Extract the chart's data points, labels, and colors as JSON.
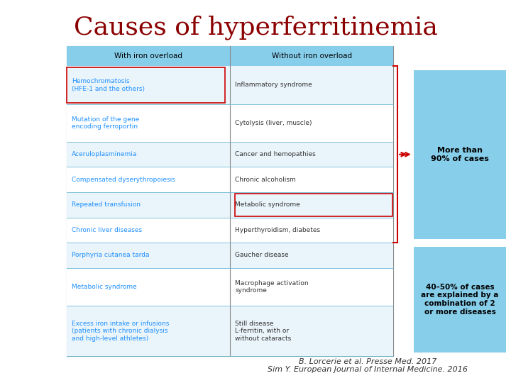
{
  "title": "Causes of hyperferritinemia",
  "title_color": "#8B0000",
  "title_fontsize": 26,
  "bg_color": "#FFFFFF",
  "table_bg": "#FFFFFF",
  "header_bg": "#87CEEB",
  "header_text_color": "#000000",
  "cell_text_color": "#1E90FF",
  "right_cell_text_color": "#333333",
  "header_left": "With iron overload",
  "header_right": "Without iron overload",
  "rows": [
    [
      "Hemochromatosis\n(HFE-1 and the others)",
      "Inflammatory syndrome"
    ],
    [
      "Mutation of the gene\nencoding ferroportin",
      "Cytolysis (liver, muscle)"
    ],
    [
      "Aceruloplasminemia",
      "Cancer and hemopathies"
    ],
    [
      "Compensated dyserythropoiesis",
      "Chronic alcoholism"
    ],
    [
      "Repeated transfusion",
      "Metabolic syndrome"
    ],
    [
      "Chronic liver diseases",
      "Hyperthyroidism, diabetes"
    ],
    [
      "Porphyria cutanea tarda",
      "Gaucher disease"
    ],
    [
      "Metabolic syndrome",
      "Macrophage activation\nsyndrome"
    ],
    [
      "Excess iron intake or infusions\n(patients with chronic dialysis\nand high-level athletes)",
      "Still disease\nL-ferritin, with or\nwithout cataracts"
    ]
  ],
  "box1_text": "More than\n90% of cases",
  "box2_text": "40–50% of cases\nare explained by a\ncombination of 2\nor more diseases",
  "box_bg": "#87CEEB",
  "box_text_color": "#000000",
  "red_bracket_color": "#CC0000",
  "red_box_color": "#CC0000",
  "citation": "B. Lorcerie et al. Presse Med. 2017\nSim Y. European Journal of Internal Medicine. 2016",
  "citation_color": "#333333",
  "citation_fontsize": 8,
  "row1_left_box": true,
  "row5_right_box": true
}
